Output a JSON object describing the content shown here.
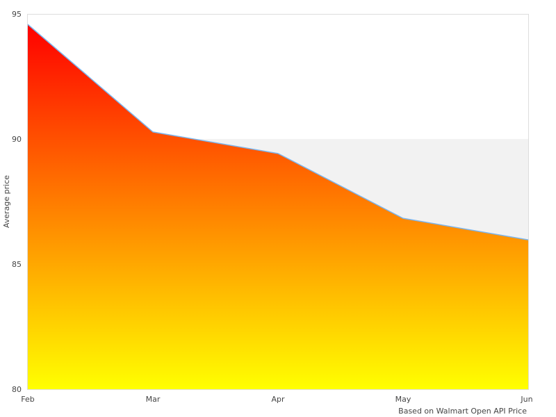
{
  "chart_data": {
    "type": "area",
    "title": "",
    "xlabel": "",
    "ylabel": "Average price",
    "categories": [
      "Feb",
      "Mar",
      "Apr",
      "May",
      "Jun"
    ],
    "series": [
      {
        "name": "Average price",
        "values": [
          94.58,
          90.28,
          89.42,
          86.83,
          85.97
        ]
      }
    ],
    "ylim": [
      80,
      95
    ],
    "yticks": [
      80,
      85,
      90,
      95
    ],
    "plot_bands": [
      {
        "from": 85,
        "to": 90,
        "color": "#f2f2f2"
      }
    ],
    "fill_gradient": {
      "top": "#ff0000",
      "bottom": "#ffff00"
    },
    "line_color": "#7cb5ec",
    "grid": false,
    "legend": "none",
    "credits": "Based on Walmart Open API Price"
  }
}
